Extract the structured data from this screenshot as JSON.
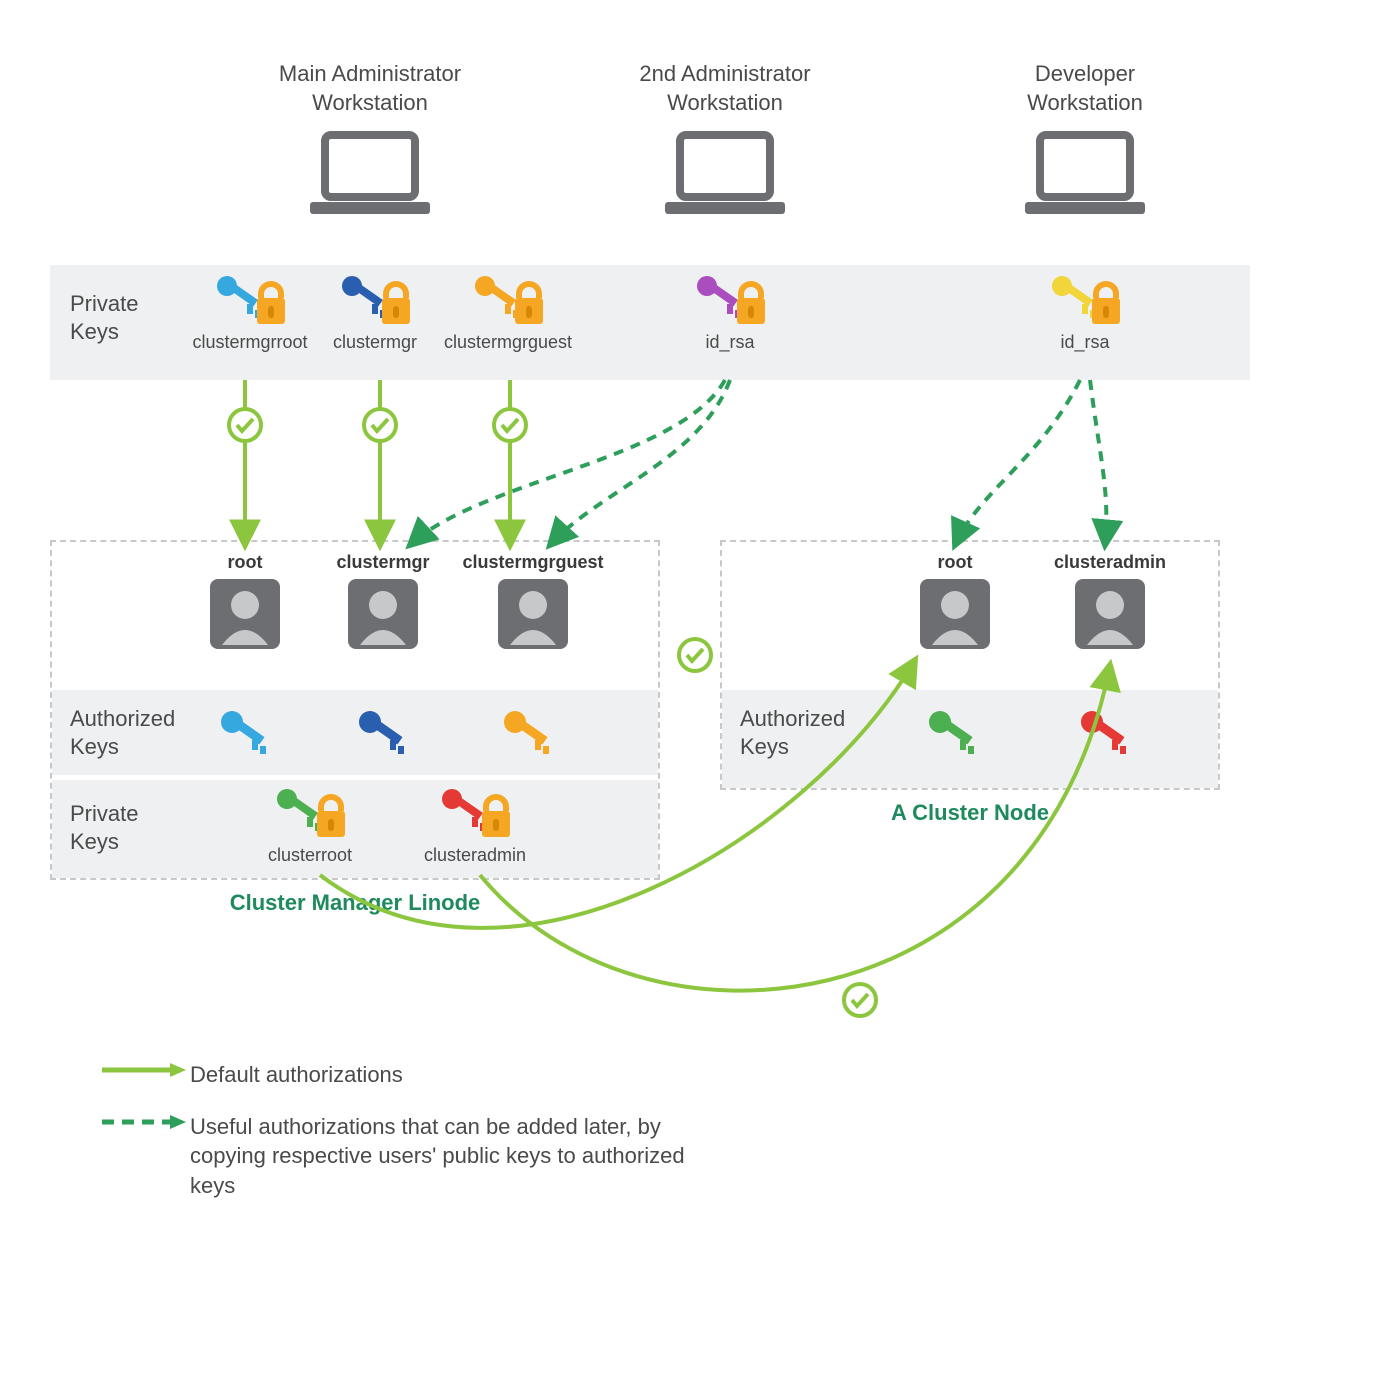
{
  "workstations": {
    "main": {
      "line1": "Main Administrator",
      "line2": "Workstation"
    },
    "second": {
      "line1": "2nd Administrator",
      "line2": "Workstation"
    },
    "dev": {
      "line1": "Developer",
      "line2": "Workstation"
    }
  },
  "privateKeysBandLabel": "Private\nKeys",
  "topKeys": {
    "k1": {
      "label": "clustermgrroot",
      "key_color": "#35a8e0",
      "lock_color": "#f5a623"
    },
    "k2": {
      "label": "clustermgr",
      "key_color": "#2a5fb0",
      "lock_color": "#f5a623"
    },
    "k3": {
      "label": "clustermgrguest",
      "key_color": "#f5a623",
      "lock_color": "#f5a623"
    },
    "k4": {
      "label": "id_rsa",
      "key_color": "#a94dbf",
      "lock_color": "#f5a623"
    },
    "k5": {
      "label": "id_rsa",
      "key_color": "#f2d43b",
      "lock_color": "#f5a623"
    }
  },
  "users": {
    "u1": "root",
    "u2": "clustermgr",
    "u3": "clustermgrguest",
    "u4": "root",
    "u5": "clusteradmin"
  },
  "authKeysLabel": "Authorized\nKeys",
  "authKeyColors": {
    "a1": "#35a8e0",
    "a2": "#2a5fb0",
    "a3": "#f5a623",
    "a4": "#4caf50",
    "a5": "#e53935"
  },
  "privKeysLowerLabel": "Private\nKeys",
  "lowerPriv": {
    "p1": {
      "label": "clusterroot",
      "key_color": "#4caf50",
      "lock_color": "#f5a623"
    },
    "p2": {
      "label": "clusteradmin",
      "key_color": "#e53935",
      "lock_color": "#f5a623"
    }
  },
  "boxes": {
    "left": "Cluster Manager Linode",
    "right": "A Cluster Node"
  },
  "legend": {
    "default": "Default authorizations",
    "useful": "Useful authorizations that can be added later, by copying respective users' public keys to authorized keys"
  },
  "colors": {
    "band_bg": "#eff0f1",
    "arrow_green": "#8cc63f",
    "dashed_green": "#2e9e5b",
    "box_dash": "#c8c8c8",
    "text": "#4a4a4a",
    "caption_green": "#1e8a5d",
    "laptop": "#6d6e71",
    "user_bg": "#6d6e71",
    "user_fg": "#c7c8ca"
  },
  "geometry": {
    "note": "positions are approximate, in px, inside 1388x1388 canvas"
  }
}
